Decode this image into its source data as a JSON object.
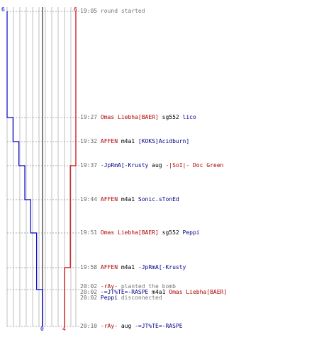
{
  "colors": {
    "team_left": "#0000cc",
    "team_right": "#cc0000",
    "grid": "#bfbfbf",
    "axis": "#555555",
    "time": "#666666",
    "weapon": "#000000",
    "status": "#777777"
  },
  "scale": {
    "left_top": "6",
    "right_top": "6",
    "left_bottom": "0",
    "right_bottom": "4"
  },
  "events": [
    {
      "time": "19:05",
      "parts": [
        {
          "text": "round started",
          "style": "gray"
        }
      ]
    },
    {
      "time": "19:27",
      "parts": [
        {
          "text": "Omas Liebha[BAER]",
          "style": "red"
        },
        {
          "text": " sg552 ",
          "style": "black"
        },
        {
          "text": "lico",
          "style": "blue"
        }
      ]
    },
    {
      "time": "19:32",
      "parts": [
        {
          "text": "AFFEN",
          "style": "red"
        },
        {
          "text": " m4a1 ",
          "style": "black"
        },
        {
          "text": "[KOKS]Acidburn]",
          "style": "blue"
        }
      ]
    },
    {
      "time": "19:37",
      "parts": [
        {
          "text": "-JpRmA[-Krusty",
          "style": "blue"
        },
        {
          "text": " aug ",
          "style": "black"
        },
        {
          "text": "-|SoI|- Doc Green",
          "style": "red"
        }
      ]
    },
    {
      "time": "19:44",
      "parts": [
        {
          "text": "AFFEN",
          "style": "red"
        },
        {
          "text": " m4a1 ",
          "style": "black"
        },
        {
          "text": "Sonic.sTonEd",
          "style": "blue"
        }
      ]
    },
    {
      "time": "19:51",
      "parts": [
        {
          "text": "Omas Liebha[BAER]",
          "style": "red"
        },
        {
          "text": " sg552 ",
          "style": "black"
        },
        {
          "text": "Peppi",
          "style": "blue"
        }
      ]
    },
    {
      "time": "19:58",
      "parts": [
        {
          "text": "AFFEN",
          "style": "red"
        },
        {
          "text": " m4a1 ",
          "style": "black"
        },
        {
          "text": "-JpRmA[-Krusty",
          "style": "blue"
        }
      ]
    },
    {
      "time": "20:02",
      "parts": [
        {
          "text": "-rAy-",
          "style": "red"
        },
        {
          "text": " planted the bomb",
          "style": "gray"
        }
      ]
    },
    {
      "time": "20:02",
      "parts": [
        {
          "text": "-=JT%TE=-RASPE",
          "style": "blue"
        },
        {
          "text": " m4a1 ",
          "style": "black"
        },
        {
          "text": "Omas Liebha[BAER]",
          "style": "red"
        }
      ]
    },
    {
      "time": "20:02",
      "parts": [
        {
          "text": "Peppi",
          "style": "blue"
        },
        {
          "text": " disconnected",
          "style": "gray"
        }
      ]
    },
    {
      "time": "20:10",
      "parts": [
        {
          "text": "-rAy-",
          "style": "red"
        },
        {
          "text": " aug ",
          "style": "black"
        },
        {
          "text": "-=JT%TE=-RASPE",
          "style": "blue"
        }
      ]
    }
  ],
  "alive_counts": {
    "left_series": [
      6,
      5,
      4,
      3,
      2,
      1,
      1,
      0,
      0
    ],
    "right_series": [
      6,
      6,
      6,
      5,
      5,
      5,
      4,
      4,
      4
    ]
  }
}
